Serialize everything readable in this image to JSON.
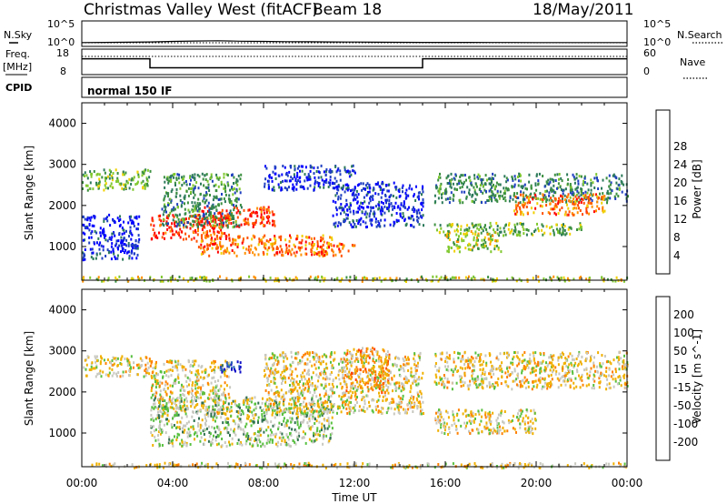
{
  "header": {
    "station": "Christmas Valley West (fitACF)",
    "beam": "Beam 18",
    "date": "18/May/2011"
  },
  "side_labels": {
    "nsky": "N.Sky",
    "nsearch": "N.Search",
    "freq": "Freq.",
    "freq_unit": "[MHz]",
    "nave": "Nave",
    "cpid": "CPID",
    "cpid_value": "normal 150 IF"
  },
  "colors": {
    "power": [
      "#0000ff",
      "#2040c0",
      "#2c7a5a",
      "#3c9040",
      "#80c830",
      "#f0d000",
      "#ff9000",
      "#ff5000",
      "#ff0000"
    ],
    "velocity": [
      "#1010c8",
      "#2860b8",
      "#307050",
      "#58c040",
      "#c8c8c0",
      "#f0b000",
      "#ff8000",
      "#ff4000",
      "#e00000"
    ]
  },
  "chart_data": [
    {
      "type": "line",
      "name": "summary",
      "series": [
        {
          "name": "N.Sky",
          "x_hours": [
            0,
            1,
            2,
            3,
            4,
            5,
            6,
            7,
            8,
            9,
            10,
            11,
            12,
            13,
            14,
            15,
            16,
            17,
            18,
            19,
            20,
            21,
            22,
            23,
            24
          ],
          "values": [
            10,
            12,
            15,
            20,
            40,
            60,
            80,
            50,
            40,
            30,
            25,
            20,
            18,
            15,
            14,
            12,
            12,
            12,
            11,
            11,
            10,
            10,
            10,
            10,
            10
          ]
        }
      ],
      "yticks_left": [
        "10^5",
        "10^0"
      ],
      "yticks_right": [
        "10^5",
        "10^0"
      ],
      "freq_ticks": [
        "18",
        "8"
      ],
      "nave_ticks": [
        "60",
        "0"
      ],
      "freq_mhz": [
        {
          "start": 0,
          "end": 3,
          "value": 15
        },
        {
          "start": 3,
          "end": 15,
          "value": 10.5
        },
        {
          "start": 15,
          "end": 24,
          "value": 15
        }
      ]
    },
    {
      "type": "heatmap",
      "name": "power",
      "ylabel": "Slant Range [km]",
      "cbar_label": "Power [dB]",
      "cbar_ticks": [
        4,
        8,
        12,
        16,
        20,
        24,
        28
      ],
      "ylim": [
        180,
        4500
      ],
      "yticks": [
        1000,
        2000,
        3000,
        4000
      ],
      "xlim": [
        0,
        24
      ],
      "regions": [
        {
          "t0": 0.0,
          "t1": 3.0,
          "r0": 2400,
          "r1": 2900,
          "level": 4
        },
        {
          "t0": 0.0,
          "t1": 2.5,
          "r0": 700,
          "r1": 1800,
          "level": 1
        },
        {
          "t0": 3.0,
          "t1": 6.5,
          "r0": 1200,
          "r1": 1800,
          "level": 8
        },
        {
          "t0": 5.0,
          "t1": 8.5,
          "r0": 1500,
          "r1": 2000,
          "level": 8
        },
        {
          "t0": 5.0,
          "t1": 11.0,
          "r0": 800,
          "r1": 1300,
          "level": 7
        },
        {
          "t0": 3.5,
          "t1": 7.0,
          "r0": 1500,
          "r1": 2800,
          "level": 3
        },
        {
          "t0": 8.0,
          "t1": 12.0,
          "r0": 2400,
          "r1": 3000,
          "level": 1
        },
        {
          "t0": 11.0,
          "t1": 15.0,
          "r0": 1500,
          "r1": 2600,
          "level": 1
        },
        {
          "t0": 10.0,
          "t1": 12.0,
          "r0": 800,
          "r1": 1100,
          "level": 7
        },
        {
          "t0": 15.5,
          "t1": 24.0,
          "r0": 2100,
          "r1": 2800,
          "level": 3
        },
        {
          "t0": 19.0,
          "t1": 23.0,
          "r0": 1800,
          "r1": 2300,
          "level": 7
        },
        {
          "t0": 15.5,
          "t1": 22.0,
          "r0": 1300,
          "r1": 1600,
          "level": 4
        },
        {
          "t0": 16.0,
          "t1": 18.5,
          "r0": 900,
          "r1": 1400,
          "level": 5
        },
        {
          "t0": 0.0,
          "t1": 24.0,
          "r0": 180,
          "r1": 300,
          "level": 5
        }
      ]
    },
    {
      "type": "heatmap",
      "name": "velocity",
      "ylabel": "Slant Range [km]",
      "xlabel": "Time UT",
      "cbar_label": "Velocity [m s^-1]",
      "cbar_ticks": [
        "200",
        "100",
        "50",
        "15",
        "-15",
        "-50",
        "-100",
        "-200"
      ],
      "ylim": [
        180,
        4500
      ],
      "yticks": [
        1000,
        2000,
        3000,
        4000
      ],
      "xlim": [
        0,
        24
      ],
      "xticks": [
        "00:00",
        "04:00",
        "08:00",
        "12:00",
        "16:00",
        "20:00",
        "00:00"
      ],
      "regions": [
        {
          "t0": 0.0,
          "t1": 3.0,
          "r0": 2400,
          "r1": 2900,
          "level": 4
        },
        {
          "t0": 3.0,
          "t1": 6.5,
          "r0": 1500,
          "r1": 2800,
          "level": 4
        },
        {
          "t0": 3.0,
          "t1": 11.0,
          "r0": 700,
          "r1": 1900,
          "level": 5
        },
        {
          "t0": 8.0,
          "t1": 15.0,
          "r0": 1500,
          "r1": 3000,
          "level": 4
        },
        {
          "t0": 11.5,
          "t1": 13.5,
          "r0": 2000,
          "r1": 3100,
          "level": 3
        },
        {
          "t0": 15.5,
          "t1": 24.0,
          "r0": 2100,
          "r1": 3000,
          "level": 4
        },
        {
          "t0": 15.5,
          "t1": 20.0,
          "r0": 1000,
          "r1": 1600,
          "level": 4
        },
        {
          "t0": 6.0,
          "t1": 7.0,
          "r0": 2500,
          "r1": 2800,
          "level": 8
        },
        {
          "t0": 0.0,
          "t1": 24.0,
          "r0": 180,
          "r1": 300,
          "level": 4
        }
      ]
    }
  ]
}
